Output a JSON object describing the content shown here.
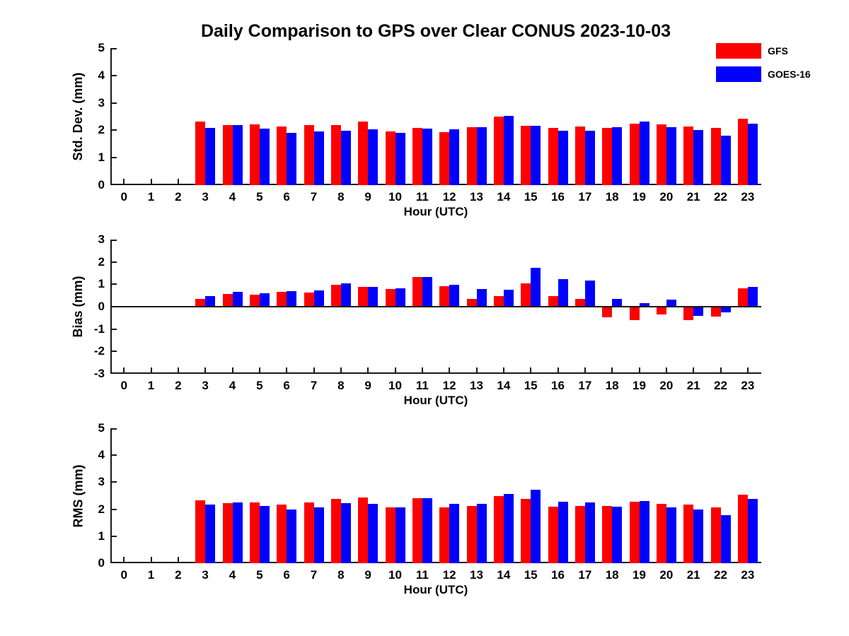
{
  "title": "Daily Comparison to GPS over Clear CONUS 2023-10-03",
  "legend": {
    "position": "top-right-outside",
    "entries": [
      {
        "label": "GFS",
        "color": "#ff0000"
      },
      {
        "label": "GOES-16",
        "color": "#0000ff"
      }
    ]
  },
  "colors": {
    "gfs": "#ff0000",
    "goes16": "#0000ff",
    "axis": "#1a1a1a",
    "background": "#ffffff"
  },
  "chart_data": [
    {
      "type": "bar",
      "title": "",
      "ylabel": "Std. Dev. (mm)",
      "xlabel": "Hour (UTC)",
      "ylim": [
        0,
        5
      ],
      "yticks": [
        0,
        1,
        2,
        3,
        4,
        5
      ],
      "grid": false,
      "categories": [
        0,
        1,
        2,
        3,
        4,
        5,
        6,
        7,
        8,
        9,
        10,
        11,
        12,
        13,
        14,
        15,
        16,
        17,
        18,
        19,
        20,
        21,
        22,
        23
      ],
      "series": [
        {
          "name": "GFS",
          "color": "#ff0000",
          "values": [
            null,
            null,
            null,
            2.32,
            2.19,
            2.21,
            2.13,
            2.18,
            2.2,
            2.31,
            1.95,
            2.09,
            1.93,
            2.11,
            2.51,
            2.16,
            2.08,
            2.15,
            2.1,
            2.23,
            2.21,
            2.13,
            2.08,
            2.43
          ]
        },
        {
          "name": "GOES-16",
          "color": "#0000ff",
          "values": [
            null,
            null,
            null,
            2.1,
            2.19,
            2.06,
            1.9,
            1.96,
            1.98,
            2.03,
            1.92,
            2.06,
            2.04,
            2.12,
            2.53,
            2.16,
            1.98,
            1.98,
            2.11,
            2.32,
            2.11,
            2.0,
            1.8,
            2.23
          ]
        }
      ]
    },
    {
      "type": "bar",
      "title": "",
      "ylabel": "Bias (mm)",
      "xlabel": "Hour (UTC)",
      "ylim": [
        -3,
        3
      ],
      "yticks": [
        -3,
        -2,
        -1,
        0,
        1,
        2,
        3
      ],
      "grid": false,
      "zero_line": true,
      "categories": [
        0,
        1,
        2,
        3,
        4,
        5,
        6,
        7,
        8,
        9,
        10,
        11,
        12,
        13,
        14,
        15,
        16,
        17,
        18,
        19,
        20,
        21,
        22,
        23
      ],
      "series": [
        {
          "name": "GFS",
          "color": "#ff0000",
          "values": [
            null,
            null,
            null,
            0.35,
            0.56,
            0.54,
            0.65,
            0.63,
            0.97,
            0.9,
            0.8,
            1.32,
            0.92,
            0.35,
            0.46,
            1.05,
            0.48,
            0.35,
            -0.48,
            -0.61,
            -0.35,
            -0.61,
            -0.44,
            0.82
          ]
        },
        {
          "name": "GOES-16",
          "color": "#0000ff",
          "values": [
            null,
            null,
            null,
            0.47,
            0.66,
            0.59,
            0.69,
            0.73,
            1.03,
            0.88,
            0.83,
            1.32,
            0.98,
            0.78,
            0.75,
            1.75,
            1.23,
            1.17,
            0.36,
            0.17,
            0.32,
            -0.42,
            -0.26,
            0.88
          ]
        }
      ]
    },
    {
      "type": "bar",
      "title": "",
      "ylabel": "RMS (mm)",
      "xlabel": "Hour (UTC)",
      "ylim": [
        0,
        5
      ],
      "yticks": [
        0,
        1,
        2,
        3,
        4,
        5
      ],
      "grid": false,
      "categories": [
        0,
        1,
        2,
        3,
        4,
        5,
        6,
        7,
        8,
        9,
        10,
        11,
        12,
        13,
        14,
        15,
        16,
        17,
        18,
        19,
        20,
        21,
        22,
        23
      ],
      "series": [
        {
          "name": "GFS",
          "color": "#ff0000",
          "values": [
            null,
            null,
            null,
            2.33,
            2.22,
            2.25,
            2.17,
            2.25,
            2.37,
            2.44,
            2.07,
            2.42,
            2.08,
            2.11,
            2.5,
            2.37,
            2.1,
            2.13,
            2.13,
            2.28,
            2.21,
            2.18,
            2.08,
            2.55
          ]
        },
        {
          "name": "GOES-16",
          "color": "#0000ff",
          "values": [
            null,
            null,
            null,
            2.17,
            2.26,
            2.13,
            2.0,
            2.07,
            2.23,
            2.2,
            2.07,
            2.42,
            2.2,
            2.21,
            2.57,
            2.73,
            2.29,
            2.26,
            2.1,
            2.31,
            2.08,
            2.0,
            1.79,
            2.37
          ]
        }
      ]
    }
  ]
}
